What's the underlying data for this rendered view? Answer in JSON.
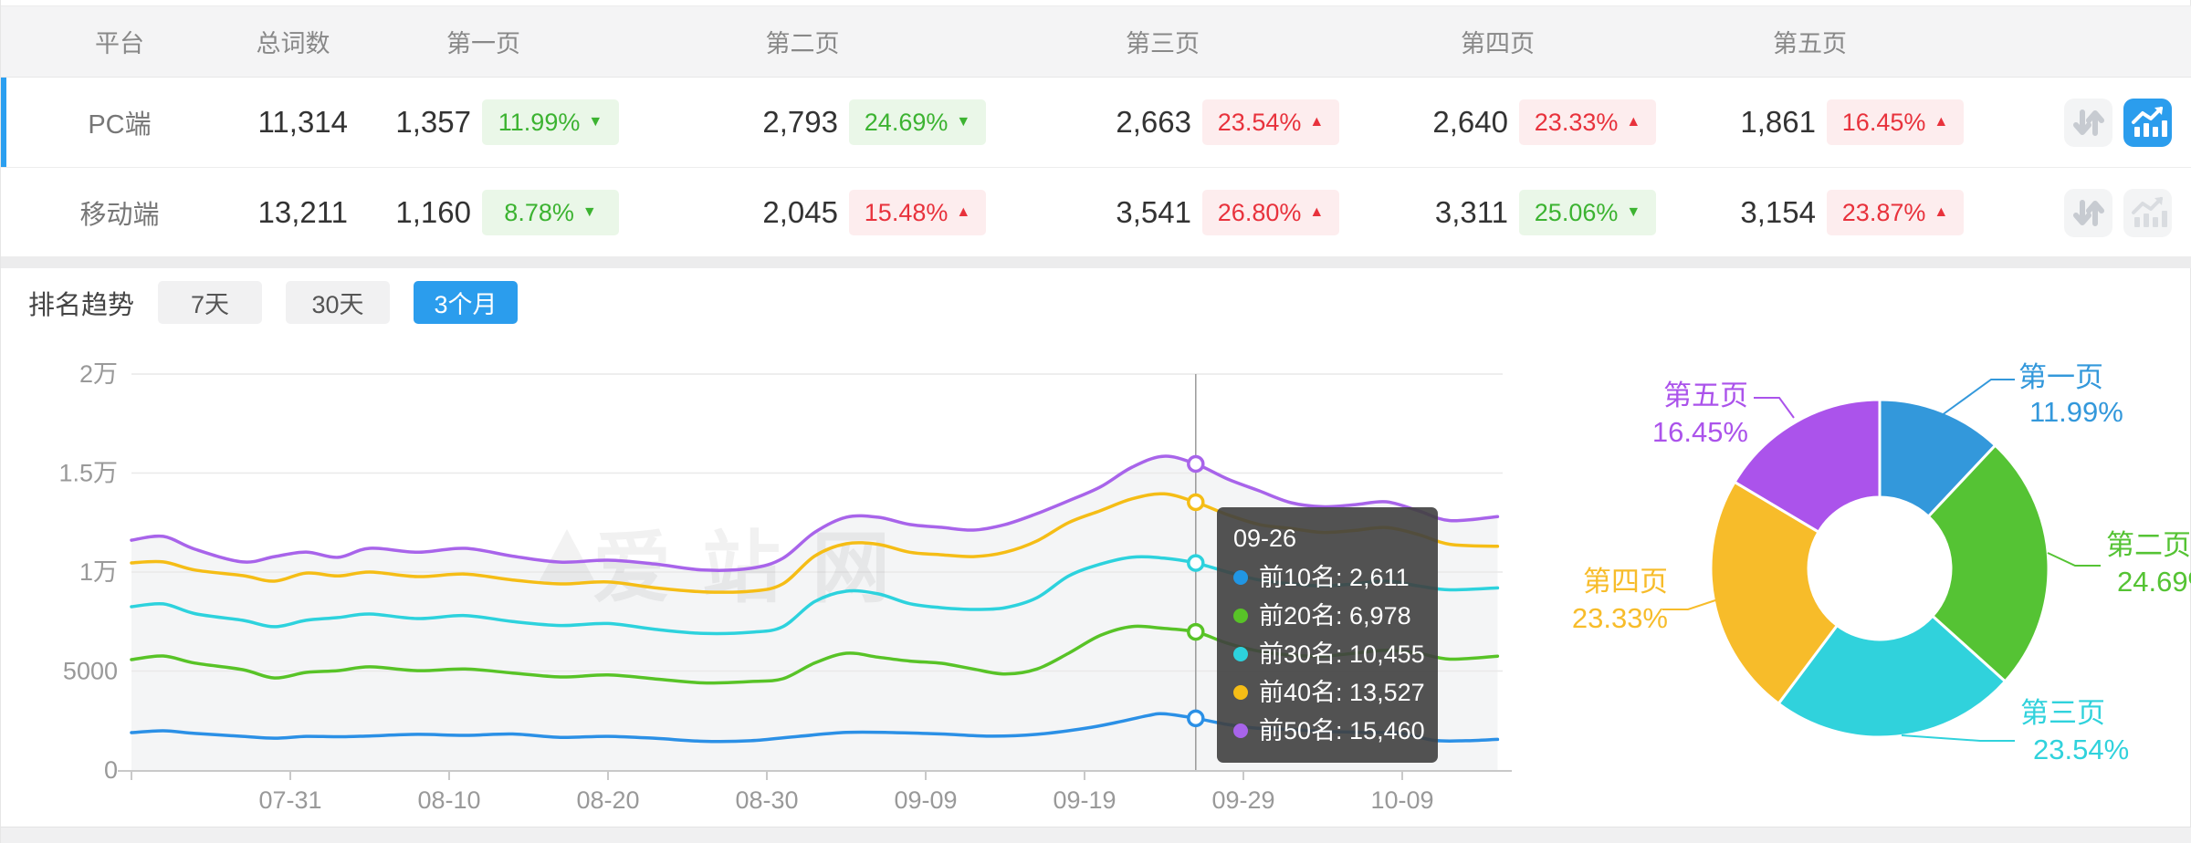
{
  "table": {
    "headers": [
      "平台",
      "总词数",
      "第一页",
      "第二页",
      "第三页",
      "第四页",
      "第五页"
    ],
    "rows": [
      {
        "platform": "PC端",
        "total": "11,314",
        "selected": true,
        "pages": [
          {
            "count": "1,357",
            "pct": "11.99%",
            "trend": "down",
            "tone": "green"
          },
          {
            "count": "2,793",
            "pct": "24.69%",
            "trend": "down",
            "tone": "green"
          },
          {
            "count": "2,663",
            "pct": "23.54%",
            "trend": "up",
            "tone": "red"
          },
          {
            "count": "2,640",
            "pct": "23.33%",
            "trend": "up",
            "tone": "red"
          },
          {
            "count": "1,861",
            "pct": "16.45%",
            "trend": "up",
            "tone": "red"
          }
        ],
        "actions": [
          {
            "icon": "sort-arrows-icon",
            "active": false
          },
          {
            "icon": "trend-chart-icon",
            "active": true
          }
        ]
      },
      {
        "platform": "移动端",
        "total": "13,211",
        "selected": false,
        "pages": [
          {
            "count": "1,160",
            "pct": "8.78%",
            "trend": "down",
            "tone": "green"
          },
          {
            "count": "2,045",
            "pct": "15.48%",
            "trend": "up",
            "tone": "red"
          },
          {
            "count": "3,541",
            "pct": "26.80%",
            "trend": "up",
            "tone": "red"
          },
          {
            "count": "3,311",
            "pct": "25.06%",
            "trend": "down",
            "tone": "green"
          },
          {
            "count": "3,154",
            "pct": "23.87%",
            "trend": "up",
            "tone": "red"
          }
        ],
        "actions": [
          {
            "icon": "sort-arrows-icon",
            "active": false
          },
          {
            "icon": "trend-chart-icon",
            "active": false
          }
        ]
      }
    ],
    "colors": {
      "accent_blue": "#2b9ded",
      "row_marker_blue": "#2b9ff0",
      "badge_green_text": "#3cb331",
      "badge_green_bg": "#eaf7e8",
      "badge_red_text": "#e8323c",
      "badge_red_bg": "#fdedee"
    }
  },
  "trend": {
    "title": "排名趋势",
    "tabs": [
      {
        "label": "7天",
        "active": false
      },
      {
        "label": "30天",
        "active": false
      },
      {
        "label": "3个月",
        "active": true
      }
    ]
  },
  "watermark": "爱站网",
  "chart_data": [
    {
      "type": "line",
      "title": "排名趋势(3个月)",
      "ylim": [
        0,
        20000
      ],
      "grid": true,
      "y_ticks": [
        {
          "v": 0,
          "label": "0"
        },
        {
          "v": 5000,
          "label": "5000"
        },
        {
          "v": 10000,
          "label": "1万"
        },
        {
          "v": 15000,
          "label": "1.5万"
        },
        {
          "v": 20000,
          "label": "2万"
        }
      ],
      "x_ticks": [
        {
          "day": 10,
          "label": "07-31"
        },
        {
          "day": 20,
          "label": "08-10"
        },
        {
          "day": 30,
          "label": "08-20"
        },
        {
          "day": 40,
          "label": "08-30"
        },
        {
          "day": 50,
          "label": "09-09"
        },
        {
          "day": 60,
          "label": "09-19"
        },
        {
          "day": 70,
          "label": "09-29"
        },
        {
          "day": 80,
          "label": "10-09"
        }
      ],
      "x_span_days": 86,
      "series": [
        {
          "name": "前10名",
          "color": "#2b90e6",
          "points": [
            [
              0,
              1890
            ],
            [
              2,
              1980
            ],
            [
              4,
              1850
            ],
            [
              7,
              1700
            ],
            [
              9,
              1610
            ],
            [
              11,
              1700
            ],
            [
              13,
              1680
            ],
            [
              15,
              1720
            ],
            [
              18,
              1800
            ],
            [
              21,
              1750
            ],
            [
              24,
              1820
            ],
            [
              27,
              1650
            ],
            [
              30,
              1700
            ],
            [
              33,
              1600
            ],
            [
              36,
              1450
            ],
            [
              39,
              1480
            ],
            [
              42,
              1700
            ],
            [
              45,
              1900
            ],
            [
              48,
              1890
            ],
            [
              51,
              1820
            ],
            [
              54,
              1710
            ],
            [
              57,
              1800
            ],
            [
              60,
              2100
            ],
            [
              62,
              2400
            ],
            [
              64,
              2750
            ],
            [
              65,
              2840
            ],
            [
              67,
              2611
            ],
            [
              69,
              2300
            ],
            [
              71,
              2100
            ],
            [
              73,
              2050
            ],
            [
              75,
              1950
            ],
            [
              78,
              1900
            ],
            [
              80,
              1850
            ],
            [
              82,
              1500
            ],
            [
              84,
              1480
            ],
            [
              86,
              1550
            ]
          ]
        },
        {
          "name": "前20名",
          "color": "#58c327",
          "points": [
            [
              0,
              5575
            ],
            [
              2,
              5760
            ],
            [
              4,
              5400
            ],
            [
              7,
              5070
            ],
            [
              9,
              4650
            ],
            [
              11,
              4930
            ],
            [
              13,
              5020
            ],
            [
              15,
              5210
            ],
            [
              18,
              5020
            ],
            [
              21,
              5100
            ],
            [
              24,
              4900
            ],
            [
              27,
              4700
            ],
            [
              30,
              4800
            ],
            [
              33,
              4600
            ],
            [
              36,
              4400
            ],
            [
              39,
              4470
            ],
            [
              41,
              4610
            ],
            [
              43,
              5400
            ],
            [
              45,
              5900
            ],
            [
              47,
              5700
            ],
            [
              49,
              5500
            ],
            [
              51,
              5390
            ],
            [
              53,
              5100
            ],
            [
              55,
              4850
            ],
            [
              57,
              5100
            ],
            [
              59,
              5900
            ],
            [
              61,
              6800
            ],
            [
              63,
              7250
            ],
            [
              65,
              7150
            ],
            [
              67,
              6978
            ],
            [
              69,
              6400
            ],
            [
              71,
              6000
            ],
            [
              73,
              5800
            ],
            [
              75,
              5750
            ],
            [
              77,
              5900
            ],
            [
              79,
              6050
            ],
            [
              81,
              5900
            ],
            [
              83,
              5600
            ],
            [
              86,
              5750
            ]
          ]
        },
        {
          "name": "前30名",
          "color": "#2dd2dd",
          "points": [
            [
              0,
              8250
            ],
            [
              2,
              8390
            ],
            [
              4,
              7900
            ],
            [
              7,
              7560
            ],
            [
              9,
              7240
            ],
            [
              11,
              7560
            ],
            [
              13,
              7700
            ],
            [
              15,
              7880
            ],
            [
              18,
              7650
            ],
            [
              21,
              7800
            ],
            [
              24,
              7500
            ],
            [
              27,
              7300
            ],
            [
              30,
              7400
            ],
            [
              33,
              7100
            ],
            [
              36,
              6900
            ],
            [
              39,
              6960
            ],
            [
              41,
              7240
            ],
            [
              43,
              8500
            ],
            [
              45,
              9030
            ],
            [
              47,
              8900
            ],
            [
              49,
              8400
            ],
            [
              51,
              8200
            ],
            [
              53,
              8110
            ],
            [
              55,
              8200
            ],
            [
              57,
              8700
            ],
            [
              59,
              9800
            ],
            [
              61,
              10400
            ],
            [
              63,
              10750
            ],
            [
              65,
              10700
            ],
            [
              67,
              10455
            ],
            [
              69,
              10000
            ],
            [
              71,
              9600
            ],
            [
              73,
              9400
            ],
            [
              75,
              9300
            ],
            [
              77,
              9400
            ],
            [
              79,
              9550
            ],
            [
              81,
              9300
            ],
            [
              83,
              9100
            ],
            [
              86,
              9200
            ]
          ]
        },
        {
          "name": "前40名",
          "color": "#f5bd16",
          "points": [
            [
              0,
              10460
            ],
            [
              2,
              10510
            ],
            [
              4,
              10100
            ],
            [
              7,
              9820
            ],
            [
              9,
              9540
            ],
            [
              11,
              9950
            ],
            [
              13,
              9800
            ],
            [
              15,
              10000
            ],
            [
              18,
              9770
            ],
            [
              21,
              9900
            ],
            [
              24,
              9600
            ],
            [
              27,
              9400
            ],
            [
              30,
              9500
            ],
            [
              33,
              9200
            ],
            [
              36,
              9000
            ],
            [
              39,
              9030
            ],
            [
              41,
              9400
            ],
            [
              43,
              10800
            ],
            [
              45,
              11430
            ],
            [
              47,
              11400
            ],
            [
              49,
              11000
            ],
            [
              51,
              10870
            ],
            [
              53,
              10780
            ],
            [
              55,
              11000
            ],
            [
              57,
              11570
            ],
            [
              59,
              12500
            ],
            [
              61,
              13100
            ],
            [
              63,
              13700
            ],
            [
              65,
              13950
            ],
            [
              67,
              13527
            ],
            [
              69,
              12900
            ],
            [
              71,
              12400
            ],
            [
              73,
              12200
            ],
            [
              75,
              12000
            ],
            [
              77,
              12100
            ],
            [
              79,
              12250
            ],
            [
              81,
              11900
            ],
            [
              83,
              11400
            ],
            [
              86,
              11300
            ]
          ]
        },
        {
          "name": "前50名",
          "color": "#a864ea",
          "points": [
            [
              0,
              11610
            ],
            [
              2,
              11800
            ],
            [
              4,
              11150
            ],
            [
              7,
              10510
            ],
            [
              9,
              10780
            ],
            [
              11,
              11010
            ],
            [
              13,
              10740
            ],
            [
              15,
              11200
            ],
            [
              18,
              11000
            ],
            [
              21,
              11200
            ],
            [
              24,
              10800
            ],
            [
              27,
              10500
            ],
            [
              30,
              10600
            ],
            [
              33,
              10400
            ],
            [
              36,
              10100
            ],
            [
              39,
              10190
            ],
            [
              41,
              10690
            ],
            [
              43,
              12000
            ],
            [
              45,
              12770
            ],
            [
              47,
              12770
            ],
            [
              49,
              12400
            ],
            [
              51,
              12260
            ],
            [
              53,
              12120
            ],
            [
              55,
              12400
            ],
            [
              57,
              12950
            ],
            [
              59,
              13600
            ],
            [
              61,
              14300
            ],
            [
              63,
              15300
            ],
            [
              65,
              15850
            ],
            [
              67,
              15460
            ],
            [
              69,
              14700
            ],
            [
              71,
              14100
            ],
            [
              73,
              13500
            ],
            [
              75,
              13300
            ],
            [
              77,
              13400
            ],
            [
              79,
              13550
            ],
            [
              81,
              13100
            ],
            [
              83,
              12600
            ],
            [
              86,
              12800
            ]
          ]
        }
      ],
      "tooltip": {
        "date": "09-26",
        "day": 67,
        "rows": [
          {
            "name": "前10名",
            "value": "2,611",
            "color": "#2196e3"
          },
          {
            "name": "前20名",
            "value": "6,978",
            "color": "#58c327"
          },
          {
            "name": "前30名",
            "value": "10,455",
            "color": "#2dd2dd"
          },
          {
            "name": "前40名",
            "value": "13,527",
            "color": "#f5bd16"
          },
          {
            "name": "前50名",
            "value": "15,460",
            "color": "#a864ea"
          }
        ]
      }
    },
    {
      "type": "pie",
      "donut": true,
      "inner_radius_ratio": 0.42,
      "slices": [
        {
          "label": "第一页",
          "pct": 11.99,
          "pct_label": "11.99%",
          "color": "#3398db"
        },
        {
          "label": "第二页",
          "pct": 24.69,
          "pct_label": "24.69%",
          "color": "#55c334"
        },
        {
          "label": "第三页",
          "pct": 23.54,
          "pct_label": "23.54%",
          "color": "#30d2dc"
        },
        {
          "label": "第四页",
          "pct": 23.33,
          "pct_label": "23.33%",
          "color": "#f7bc2a"
        },
        {
          "label": "第五页",
          "pct": 16.45,
          "pct_label": "16.45%",
          "color": "#ab53eb"
        }
      ]
    }
  ]
}
